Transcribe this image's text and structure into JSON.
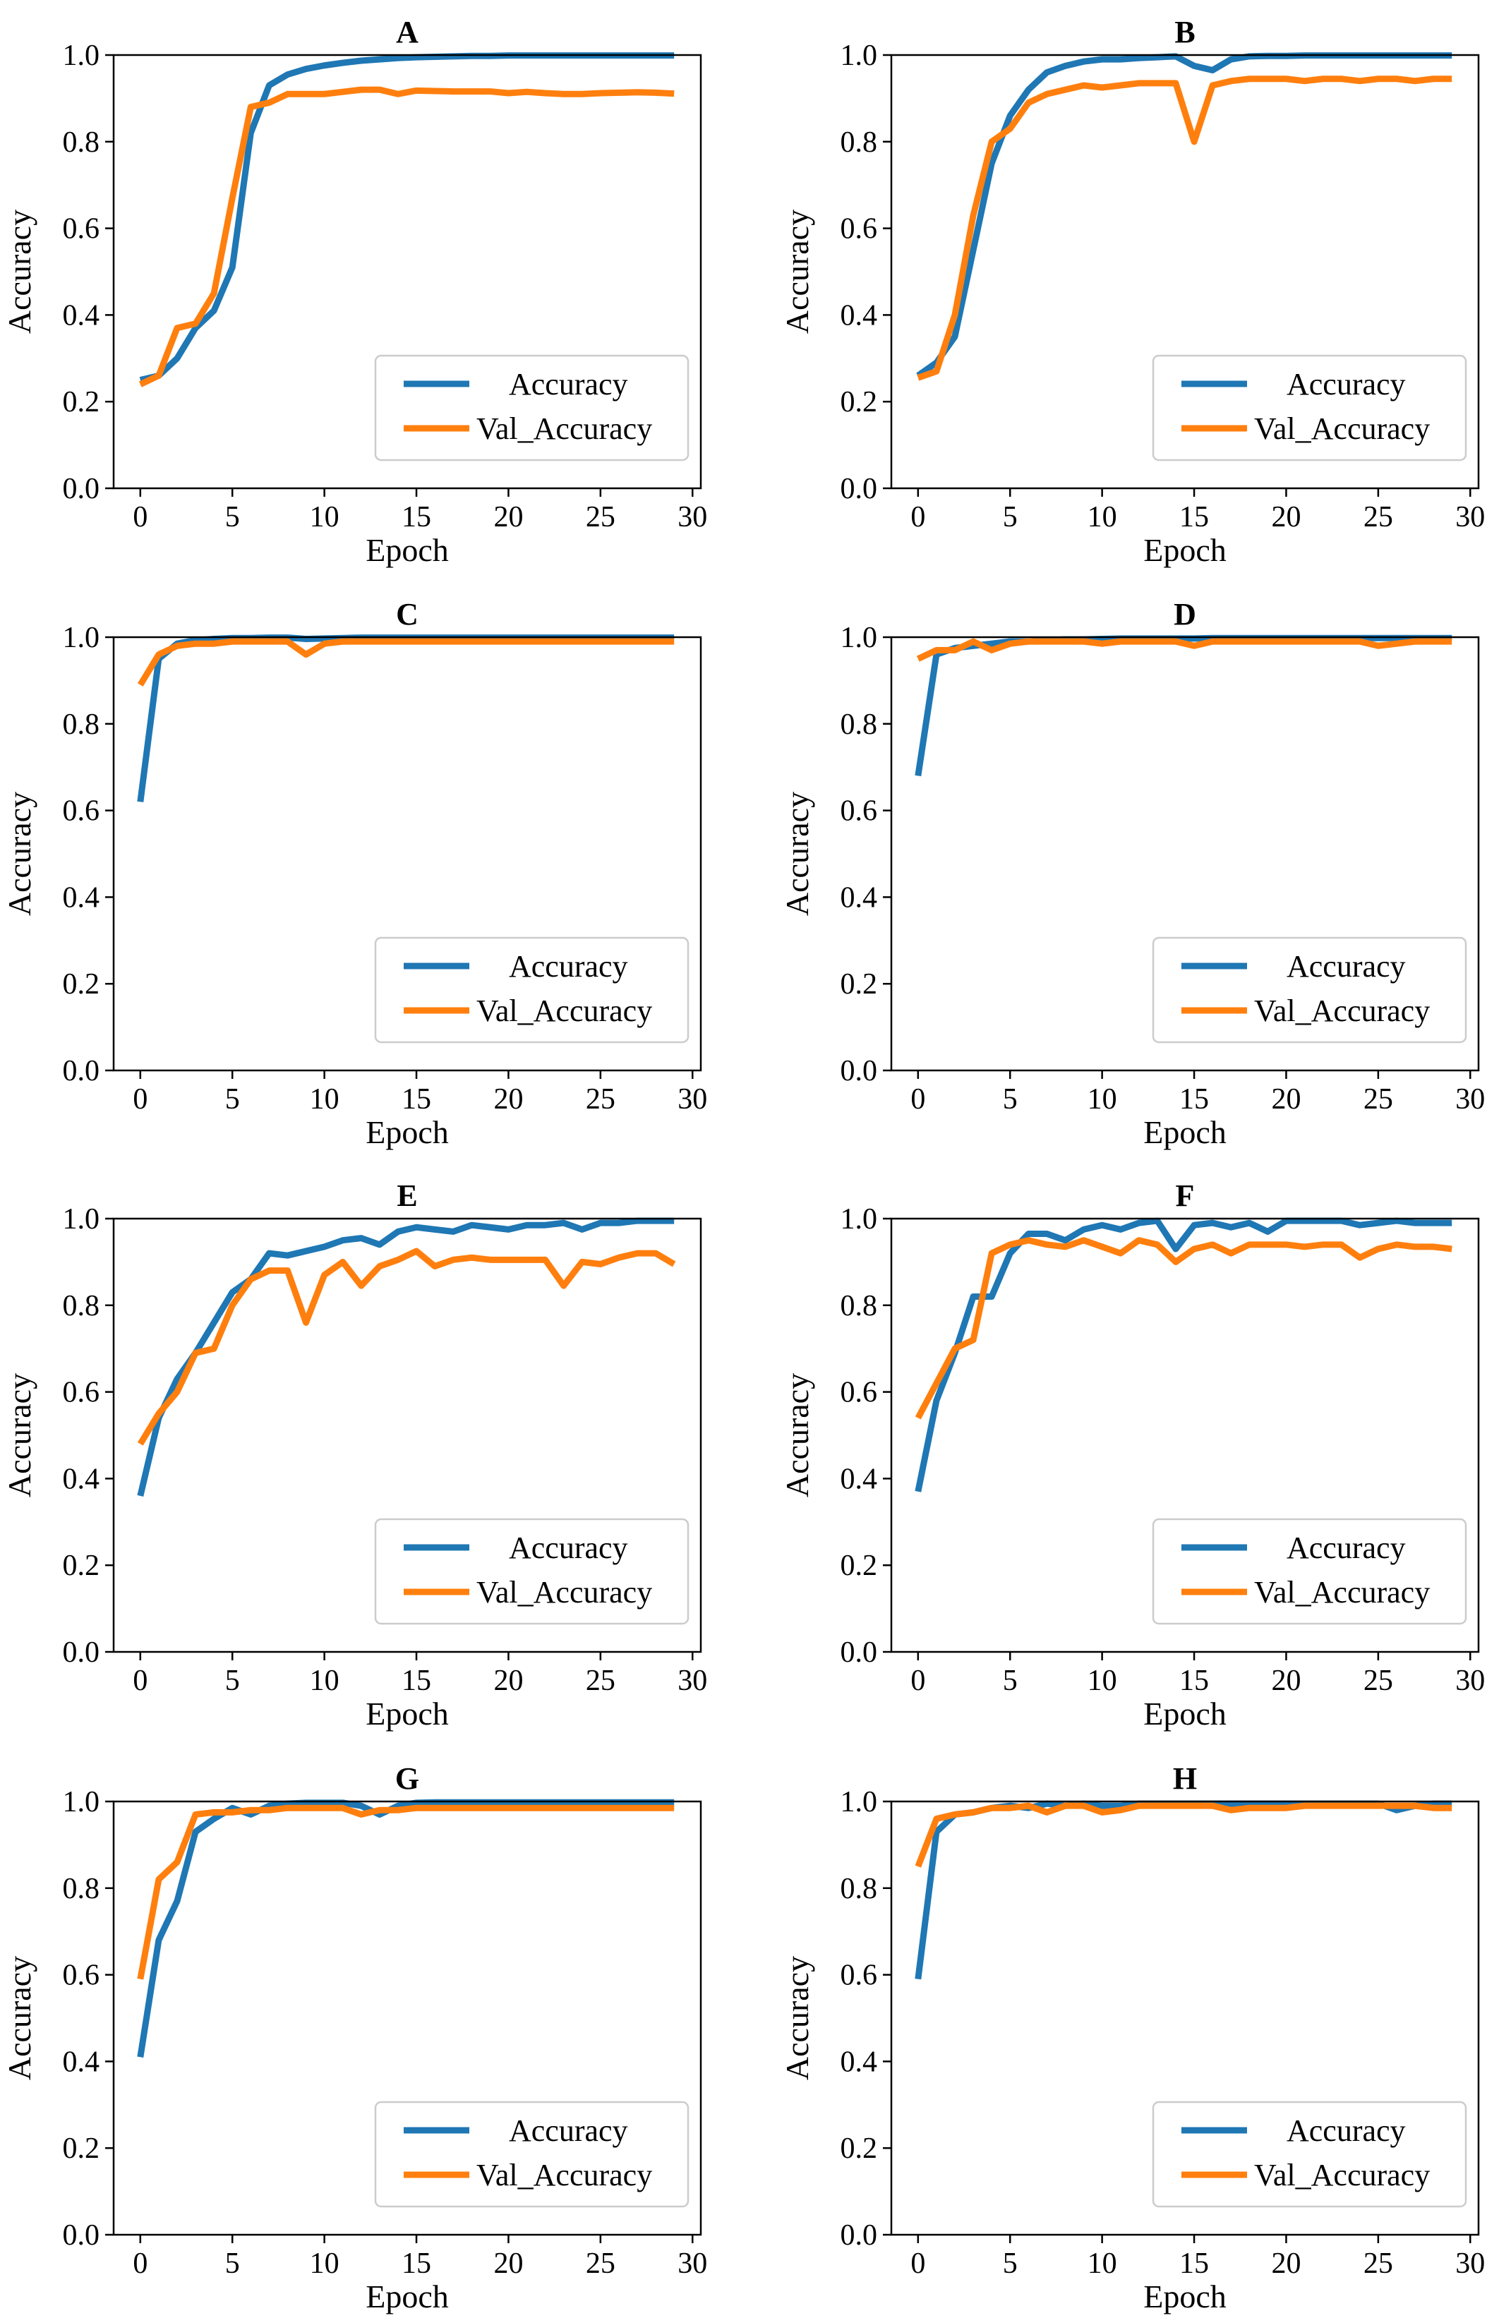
{
  "chart_data": [
    {
      "panel": "A",
      "type": "line",
      "title": "A",
      "xlabel": "Epoch",
      "ylabel": "Accuracy",
      "xlim": [
        -1.45,
        30.45
      ],
      "ylim": [
        0.0,
        1.0
      ],
      "xticks": [
        0,
        5,
        10,
        15,
        20,
        25,
        30
      ],
      "yticks": [
        "0.0",
        "0.2",
        "0.4",
        "0.6",
        "0.8",
        "1.0"
      ],
      "legend": {
        "position": "lower-right",
        "entries": [
          "Accuracy",
          "Val_Accuracy"
        ]
      },
      "series": [
        {
          "name": "Accuracy",
          "color": "#1f77b4",
          "values": [
            0.25,
            0.26,
            0.3,
            0.37,
            0.41,
            0.51,
            0.82,
            0.93,
            0.955,
            0.968,
            0.976,
            0.982,
            0.987,
            0.99,
            0.993,
            0.995,
            0.996,
            0.997,
            0.998,
            0.998,
            0.999,
            0.999,
            0.999,
            0.999,
            0.999,
            0.999,
            0.999,
            0.999,
            0.999,
            0.999
          ]
        },
        {
          "name": "Val_Accuracy",
          "color": "#ff7f0e",
          "values": [
            0.24,
            0.26,
            0.37,
            0.38,
            0.45,
            0.67,
            0.88,
            0.89,
            0.91,
            0.91,
            0.91,
            0.915,
            0.92,
            0.92,
            0.91,
            0.918,
            0.917,
            0.916,
            0.916,
            0.916,
            0.912,
            0.915,
            0.912,
            0.91,
            0.91,
            0.912,
            0.913,
            0.914,
            0.913,
            0.911
          ]
        }
      ]
    },
    {
      "panel": "B",
      "type": "line",
      "title": "B",
      "xlabel": "Epoch",
      "ylabel": "Accuracy",
      "xlim": [
        -1.45,
        30.45
      ],
      "ylim": [
        0.0,
        1.0
      ],
      "xticks": [
        0,
        5,
        10,
        15,
        20,
        25,
        30
      ],
      "yticks": [
        "0.0",
        "0.2",
        "0.4",
        "0.6",
        "0.8",
        "1.0"
      ],
      "legend": {
        "position": "lower-right",
        "entries": [
          "Accuracy",
          "Val_Accuracy"
        ]
      },
      "series": [
        {
          "name": "Accuracy",
          "color": "#1f77b4",
          "values": [
            0.26,
            0.29,
            0.35,
            0.55,
            0.75,
            0.86,
            0.92,
            0.96,
            0.975,
            0.985,
            0.99,
            0.99,
            0.993,
            0.995,
            0.997,
            0.975,
            0.965,
            0.99,
            0.997,
            0.998,
            0.998,
            0.999,
            0.999,
            0.999,
            0.999,
            0.999,
            0.999,
            0.999,
            0.999,
            0.999
          ]
        },
        {
          "name": "Val_Accuracy",
          "color": "#ff7f0e",
          "values": [
            0.255,
            0.27,
            0.4,
            0.63,
            0.8,
            0.83,
            0.89,
            0.91,
            0.92,
            0.93,
            0.925,
            0.93,
            0.935,
            0.935,
            0.935,
            0.8,
            0.93,
            0.94,
            0.945,
            0.945,
            0.945,
            0.94,
            0.945,
            0.945,
            0.94,
            0.945,
            0.945,
            0.94,
            0.945,
            0.945
          ]
        }
      ]
    },
    {
      "panel": "C",
      "type": "line",
      "title": "C",
      "xlabel": "Epoch",
      "ylabel": "Accuracy",
      "xlim": [
        -1.45,
        30.45
      ],
      "ylim": [
        0.0,
        1.0
      ],
      "xticks": [
        0,
        5,
        10,
        15,
        20,
        25,
        30
      ],
      "yticks": [
        "0.0",
        "0.2",
        "0.4",
        "0.6",
        "0.8",
        "1.0"
      ],
      "legend": {
        "position": "lower-right",
        "entries": [
          "Accuracy",
          "Val_Accuracy"
        ]
      },
      "series": [
        {
          "name": "Accuracy",
          "color": "#1f77b4",
          "values": [
            0.62,
            0.95,
            0.985,
            0.993,
            0.996,
            0.998,
            0.998,
            0.999,
            0.999,
            0.996,
            0.997,
            0.998,
            0.999,
            0.999,
            0.999,
            0.999,
            0.999,
            0.999,
            0.999,
            0.999,
            0.999,
            0.999,
            0.999,
            0.999,
            0.999,
            0.999,
            0.999,
            0.999,
            0.999,
            0.999
          ]
        },
        {
          "name": "Val_Accuracy",
          "color": "#ff7f0e",
          "values": [
            0.89,
            0.96,
            0.98,
            0.985,
            0.985,
            0.99,
            0.99,
            0.99,
            0.99,
            0.96,
            0.985,
            0.99,
            0.99,
            0.99,
            0.99,
            0.99,
            0.99,
            0.99,
            0.99,
            0.99,
            0.99,
            0.99,
            0.99,
            0.99,
            0.99,
            0.99,
            0.99,
            0.99,
            0.99,
            0.99
          ]
        }
      ]
    },
    {
      "panel": "D",
      "type": "line",
      "title": "D",
      "xlabel": "Epoch",
      "ylabel": "Accuracy",
      "xlim": [
        -1.45,
        30.45
      ],
      "ylim": [
        0.0,
        1.0
      ],
      "xticks": [
        0,
        5,
        10,
        15,
        20,
        25,
        30
      ],
      "yticks": [
        "0.0",
        "0.2",
        "0.4",
        "0.6",
        "0.8",
        "1.0"
      ],
      "legend": {
        "position": "lower-right",
        "entries": [
          "Accuracy",
          "Val_Accuracy"
        ]
      },
      "series": [
        {
          "name": "Accuracy",
          "color": "#1f77b4",
          "values": [
            0.68,
            0.96,
            0.975,
            0.98,
            0.985,
            0.99,
            0.99,
            0.993,
            0.995,
            0.995,
            0.996,
            0.997,
            0.997,
            0.997,
            0.997,
            0.997,
            0.998,
            0.998,
            0.998,
            0.998,
            0.998,
            0.998,
            0.998,
            0.998,
            0.998,
            0.998,
            0.998,
            0.998,
            0.998,
            0.998
          ]
        },
        {
          "name": "Val_Accuracy",
          "color": "#ff7f0e",
          "values": [
            0.95,
            0.97,
            0.97,
            0.99,
            0.97,
            0.985,
            0.99,
            0.99,
            0.99,
            0.99,
            0.985,
            0.99,
            0.99,
            0.99,
            0.99,
            0.98,
            0.99,
            0.99,
            0.99,
            0.99,
            0.99,
            0.99,
            0.99,
            0.99,
            0.99,
            0.98,
            0.985,
            0.99,
            0.99,
            0.99
          ]
        }
      ]
    },
    {
      "panel": "E",
      "type": "line",
      "title": "E",
      "xlabel": "Epoch",
      "ylabel": "Accuracy",
      "xlim": [
        -1.45,
        30.45
      ],
      "ylim": [
        0.0,
        1.0
      ],
      "xticks": [
        0,
        5,
        10,
        15,
        20,
        25,
        30
      ],
      "yticks": [
        "0.0",
        "0.2",
        "0.4",
        "0.6",
        "0.8",
        "1.0"
      ],
      "legend": {
        "position": "lower-right",
        "entries": [
          "Accuracy",
          "Val_Accuracy"
        ]
      },
      "series": [
        {
          "name": "Accuracy",
          "color": "#1f77b4",
          "values": [
            0.36,
            0.54,
            0.63,
            0.69,
            0.76,
            0.83,
            0.86,
            0.92,
            0.915,
            0.925,
            0.935,
            0.95,
            0.955,
            0.94,
            0.97,
            0.98,
            0.975,
            0.97,
            0.985,
            0.98,
            0.975,
            0.985,
            0.985,
            0.99,
            0.975,
            0.99,
            0.99,
            0.995,
            0.995,
            0.995
          ]
        },
        {
          "name": "Val_Accuracy",
          "color": "#ff7f0e",
          "values": [
            0.48,
            0.55,
            0.6,
            0.69,
            0.7,
            0.8,
            0.86,
            0.88,
            0.88,
            0.76,
            0.87,
            0.9,
            0.845,
            0.89,
            0.905,
            0.925,
            0.89,
            0.905,
            0.91,
            0.905,
            0.905,
            0.905,
            0.905,
            0.845,
            0.9,
            0.895,
            0.91,
            0.92,
            0.92,
            0.895
          ]
        }
      ]
    },
    {
      "panel": "F",
      "type": "line",
      "title": "F",
      "xlabel": "Epoch",
      "ylabel": "Accuracy",
      "xlim": [
        -1.45,
        30.45
      ],
      "ylim": [
        0.0,
        1.0
      ],
      "xticks": [
        0,
        5,
        10,
        15,
        20,
        25,
        30
      ],
      "yticks": [
        "0.0",
        "0.2",
        "0.4",
        "0.6",
        "0.8",
        "1.0"
      ],
      "legend": {
        "position": "lower-right",
        "entries": [
          "Accuracy",
          "Val_Accuracy"
        ]
      },
      "series": [
        {
          "name": "Accuracy",
          "color": "#1f77b4",
          "values": [
            0.37,
            0.58,
            0.69,
            0.82,
            0.82,
            0.92,
            0.965,
            0.965,
            0.95,
            0.975,
            0.985,
            0.975,
            0.99,
            0.995,
            0.93,
            0.985,
            0.99,
            0.98,
            0.99,
            0.97,
            0.995,
            0.995,
            0.995,
            0.995,
            0.985,
            0.99,
            0.995,
            0.99,
            0.99,
            0.99
          ]
        },
        {
          "name": "Val_Accuracy",
          "color": "#ff7f0e",
          "values": [
            0.54,
            0.62,
            0.7,
            0.72,
            0.92,
            0.94,
            0.95,
            0.94,
            0.935,
            0.95,
            0.935,
            0.92,
            0.95,
            0.94,
            0.9,
            0.93,
            0.94,
            0.92,
            0.94,
            0.94,
            0.94,
            0.935,
            0.94,
            0.94,
            0.91,
            0.93,
            0.94,
            0.935,
            0.935,
            0.93
          ]
        }
      ]
    },
    {
      "panel": "G",
      "type": "line",
      "title": "G",
      "xlabel": "Epoch",
      "ylabel": "Accuracy",
      "xlim": [
        -1.45,
        30.45
      ],
      "ylim": [
        0.0,
        1.0
      ],
      "xticks": [
        0,
        5,
        10,
        15,
        20,
        25,
        30
      ],
      "yticks": [
        "0.0",
        "0.2",
        "0.4",
        "0.6",
        "0.8",
        "1.0"
      ],
      "legend": {
        "position": "lower-right",
        "entries": [
          "Accuracy",
          "Val_Accuracy"
        ]
      },
      "series": [
        {
          "name": "Accuracy",
          "color": "#1f77b4",
          "values": [
            0.41,
            0.68,
            0.77,
            0.93,
            0.96,
            0.985,
            0.97,
            0.99,
            0.995,
            0.997,
            0.997,
            0.997,
            0.99,
            0.97,
            0.99,
            0.997,
            0.998,
            0.998,
            0.998,
            0.998,
            0.998,
            0.998,
            0.998,
            0.998,
            0.998,
            0.998,
            0.998,
            0.998,
            0.998,
            0.998
          ]
        },
        {
          "name": "Val_Accuracy",
          "color": "#ff7f0e",
          "values": [
            0.59,
            0.82,
            0.86,
            0.97,
            0.975,
            0.975,
            0.98,
            0.98,
            0.985,
            0.985,
            0.985,
            0.985,
            0.97,
            0.98,
            0.98,
            0.985,
            0.985,
            0.985,
            0.985,
            0.985,
            0.985,
            0.985,
            0.985,
            0.985,
            0.985,
            0.985,
            0.985,
            0.985,
            0.985,
            0.985
          ]
        }
      ]
    },
    {
      "panel": "H",
      "type": "line",
      "title": "H",
      "xlabel": "Epoch",
      "ylabel": "Accuracy",
      "xlim": [
        -1.45,
        30.45
      ],
      "ylim": [
        0.0,
        1.0
      ],
      "xticks": [
        0,
        5,
        10,
        15,
        20,
        25,
        30
      ],
      "yticks": [
        "0.0",
        "0.2",
        "0.4",
        "0.6",
        "0.8",
        "1.0"
      ],
      "legend": {
        "position": "lower-right",
        "entries": [
          "Accuracy",
          "Val_Accuracy"
        ]
      },
      "series": [
        {
          "name": "Accuracy",
          "color": "#1f77b4",
          "values": [
            0.59,
            0.93,
            0.97,
            0.975,
            0.985,
            0.99,
            0.985,
            0.995,
            0.99,
            0.995,
            0.99,
            0.99,
            0.995,
            0.995,
            0.995,
            0.995,
            0.995,
            0.995,
            0.995,
            0.995,
            0.995,
            0.995,
            0.995,
            0.995,
            0.995,
            0.995,
            0.98,
            0.99,
            0.995,
            0.995
          ]
        },
        {
          "name": "Val_Accuracy",
          "color": "#ff7f0e",
          "values": [
            0.85,
            0.96,
            0.97,
            0.975,
            0.985,
            0.985,
            0.99,
            0.975,
            0.99,
            0.99,
            0.975,
            0.98,
            0.99,
            0.99,
            0.99,
            0.99,
            0.99,
            0.98,
            0.985,
            0.985,
            0.985,
            0.99,
            0.99,
            0.99,
            0.99,
            0.99,
            0.99,
            0.99,
            0.985,
            0.985
          ]
        }
      ]
    }
  ]
}
